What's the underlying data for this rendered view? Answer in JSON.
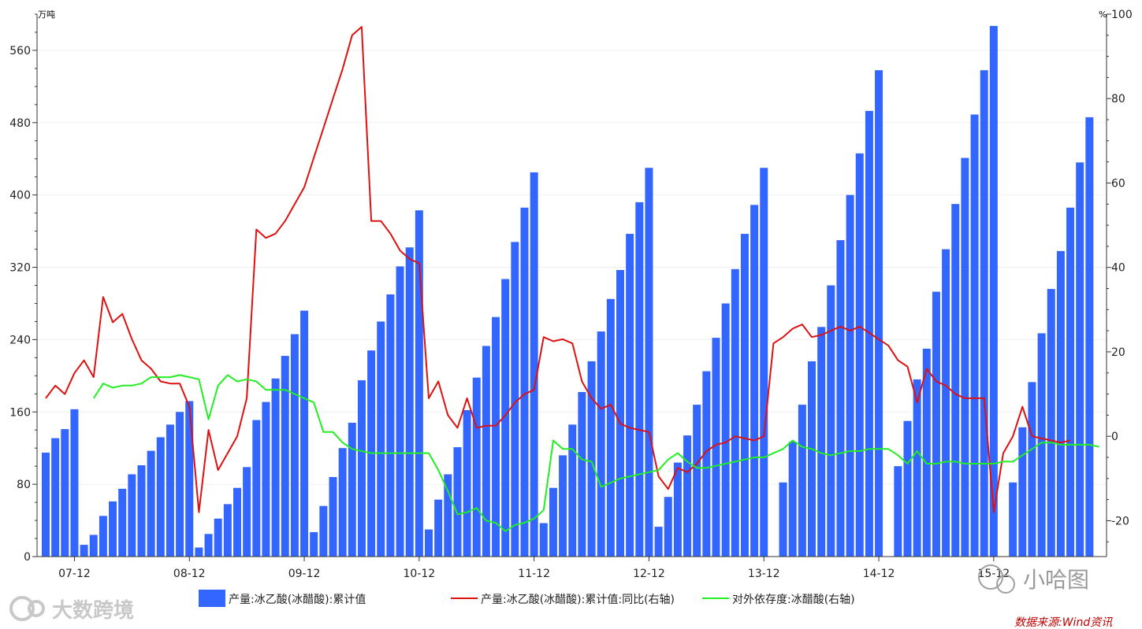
{
  "chart_data": {
    "type": "bar+line",
    "left_axis": {
      "unit": "万吨",
      "ticks": [
        0,
        80,
        160,
        240,
        320,
        400,
        480,
        560
      ],
      "range": [
        0,
        600
      ]
    },
    "right_axis": {
      "unit": "%",
      "ticks": [
        -20,
        0,
        20,
        40,
        60,
        80,
        100
      ],
      "range": [
        -28.5,
        100
      ]
    },
    "x_ticks": [
      {
        "label": "07-12",
        "index": 3
      },
      {
        "label": "08-12",
        "index": 15
      },
      {
        "label": "09-12",
        "index": 27
      },
      {
        "label": "10-12",
        "index": 39
      },
      {
        "label": "11-12",
        "index": 51
      },
      {
        "label": "12-12",
        "index": 63
      },
      {
        "label": "13-12",
        "index": 75
      },
      {
        "label": "14-12",
        "index": 87
      },
      {
        "label": "15-12",
        "index": 99
      }
    ],
    "series": [
      {
        "name": "产量:冰乙酸(冰醋酸):累计值",
        "type": "bar",
        "axis": "left",
        "color": "#3366ff",
        "values": [
          115,
          131,
          141,
          163,
          13,
          24,
          45,
          61,
          75,
          91,
          101,
          117,
          132,
          146,
          160,
          172,
          10,
          25,
          42,
          58,
          76,
          99,
          151,
          171,
          197,
          222,
          246,
          272,
          27,
          56,
          88,
          120,
          148,
          195,
          228,
          260,
          290,
          321,
          342,
          383,
          30,
          63,
          91,
          121,
          162,
          198,
          233,
          265,
          307,
          348,
          386,
          425,
          37,
          76,
          112,
          146,
          182,
          216,
          249,
          285,
          317,
          357,
          392,
          430,
          33,
          66,
          104,
          134,
          168,
          205,
          242,
          280,
          318,
          357,
          389,
          430,
          null,
          82,
          127,
          168,
          216,
          254,
          300,
          350,
          400,
          446,
          493,
          538,
          null,
          100,
          150,
          196,
          230,
          293,
          340,
          390,
          441,
          489,
          538,
          587,
          null,
          82,
          143,
          193,
          247,
          296,
          338,
          386,
          436,
          486
        ]
      },
      {
        "name": "产量:冰乙酸(冰醋酸):累计值:同比(右轴)",
        "type": "line",
        "axis": "right",
        "color": "#dd1111",
        "values": [
          9,
          12,
          10,
          15,
          18,
          14,
          33,
          27,
          29,
          23,
          18,
          16,
          13,
          12.5,
          12.5,
          7,
          -18,
          1.5,
          -8,
          -4,
          0,
          9,
          49,
          47,
          48,
          51,
          55,
          59,
          66,
          73,
          80,
          87,
          95,
          97,
          51,
          51,
          48,
          44,
          42,
          41,
          9,
          13,
          5,
          2,
          9,
          2,
          2.5,
          2.5,
          5,
          8,
          10,
          11,
          23.5,
          22.5,
          23,
          22,
          13,
          9,
          6.5,
          7.5,
          3,
          2,
          1.5,
          1,
          -9.5,
          -12.5,
          -7.5,
          -8.5,
          -6.5,
          -3.5,
          -2,
          -1.5,
          0,
          -0.5,
          -1,
          0,
          22,
          23.5,
          25.5,
          26.5,
          23.5,
          24,
          25,
          26,
          25,
          26,
          24.5,
          23,
          21.5,
          18,
          16.5,
          8,
          16,
          13,
          12,
          10,
          9,
          9,
          9,
          -18,
          -4,
          0,
          7,
          0,
          -0.5,
          -1,
          -1.5,
          -1
        ]
      },
      {
        "name": "对外依存度:冰醋酸(右轴)",
        "type": "line",
        "axis": "right",
        "color": "#22ee22",
        "values": [
          null,
          null,
          null,
          null,
          null,
          9,
          12.5,
          11.5,
          12,
          12,
          12.5,
          14,
          14,
          14,
          14.5,
          14,
          13.5,
          4,
          12,
          14.5,
          13,
          13.5,
          13,
          11,
          11,
          11,
          10,
          9,
          8,
          1,
          1,
          -1.5,
          -3,
          -3.5,
          -4,
          -4,
          -4,
          -4,
          -4,
          -4,
          -4,
          -8,
          -13,
          -18.5,
          -18,
          -17,
          -20,
          -20.5,
          -22.5,
          -21,
          -20.5,
          -19.5,
          -17.5,
          -1,
          -3,
          -3,
          -5.5,
          -6,
          -12,
          -11,
          -10,
          -9.5,
          -9,
          -8.5,
          -8,
          -5.5,
          -4,
          -6,
          -7.5,
          -7.5,
          -7,
          -6.5,
          -6,
          -5.5,
          -5,
          -5,
          -4,
          -3,
          -1,
          -2.5,
          -3,
          -4,
          -4.5,
          -4,
          -3.5,
          -3.5,
          -3,
          -3,
          -3,
          -4.5,
          -6.5,
          -3.5,
          -6.5,
          -6.5,
          -6,
          -6,
          -6.5,
          -6.5,
          -6.5,
          -6.5,
          -6,
          -6,
          -4.5,
          -3,
          -1.5,
          -1.5,
          -2,
          -2,
          -2,
          -2,
          -2.5
        ]
      }
    ]
  },
  "source": "数据来源:Wind资讯",
  "watermark_left": "大数跨境",
  "watermark_right": "小哈图"
}
